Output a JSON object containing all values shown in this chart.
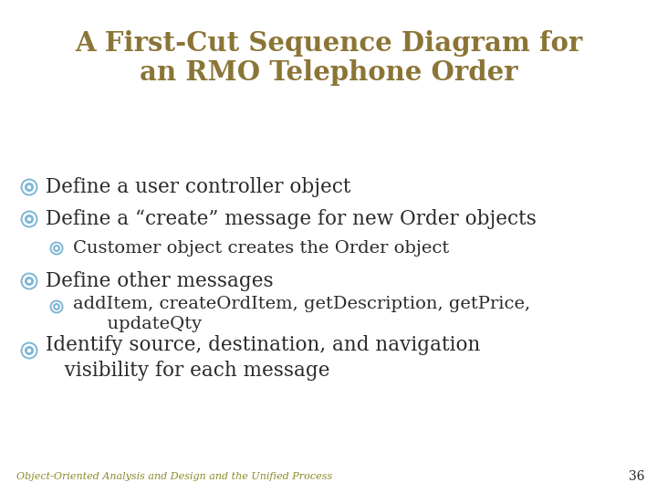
{
  "title_line1": "A First-Cut Sequence Diagram for",
  "title_line2": "an RMO Telephone Order",
  "title_color": "#8B7536",
  "background_color": "#FFFFFF",
  "bullet_color_l0": "#7EB6D4",
  "bullet_color_l1": "#7EB6D4",
  "text_color": "#2A2A2A",
  "footer_text": "Object-Oriented Analysis and Design and the Unified Process",
  "footer_color": "#8B8B2A",
  "page_number": "36",
  "title_fontsize": 21,
  "bullet_fontsize_l0": 15.5,
  "bullet_fontsize_l1": 14,
  "footer_fontsize": 8,
  "items": [
    {
      "level": 0,
      "lines": [
        "Define a user controller object"
      ]
    },
    {
      "level": 0,
      "lines": [
        "Define a “create” message for new Order objects"
      ]
    },
    {
      "level": 1,
      "lines": [
        "Customer object creates the Order object"
      ]
    },
    {
      "level": 0,
      "lines": [
        "Define other messages"
      ]
    },
    {
      "level": 1,
      "lines": [
        "addItem, createOrdItem, getDescription, getPrice,",
        "      updateQty"
      ]
    },
    {
      "level": 0,
      "lines": [
        "Identify source, destination, and navigation",
        "   visibility for each message"
      ]
    }
  ]
}
